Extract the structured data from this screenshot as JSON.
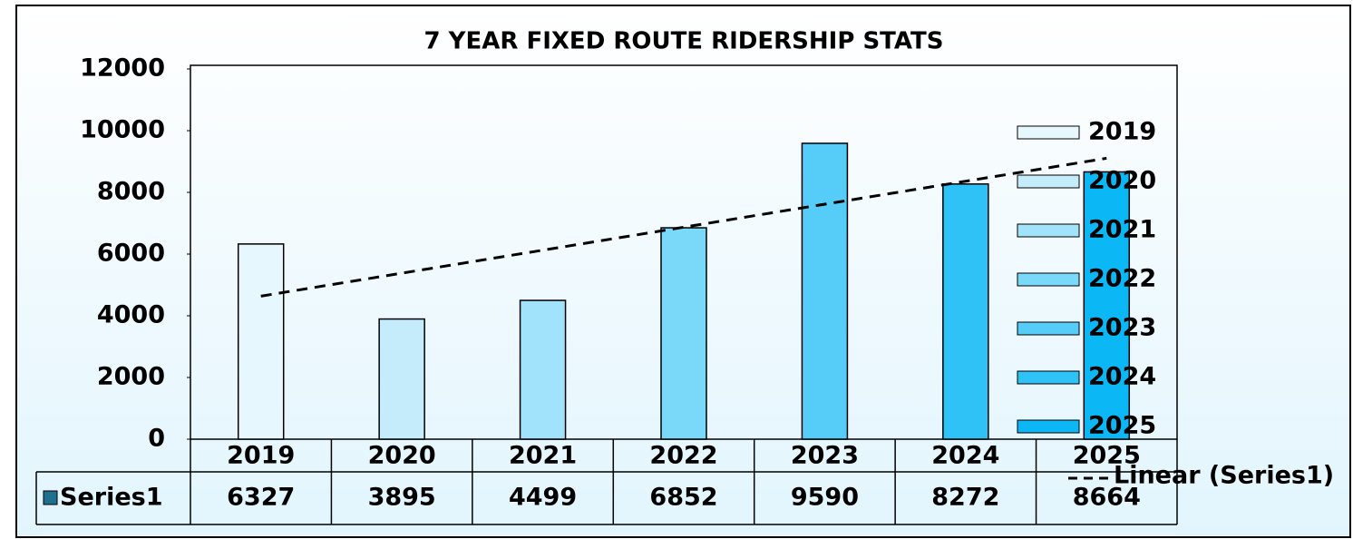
{
  "chart_data": {
    "type": "bar",
    "title": "7 YEAR FIXED ROUTE RIDERSHIP STATS",
    "categories": [
      "2019",
      "2020",
      "2021",
      "2022",
      "2023",
      "2024",
      "2025"
    ],
    "series": [
      {
        "name": "Series1",
        "color": "#1f6f8f",
        "colors": [
          "#e6f7fd",
          "#c4ecfb",
          "#a0e3fa",
          "#7ad8f9",
          "#55cdf8",
          "#2fc2f7",
          "#0bb7f5"
        ],
        "values": [
          6327,
          3895,
          4499,
          6852,
          9590,
          8272,
          8664
        ]
      }
    ],
    "trendline": {
      "type": "linear",
      "name": "Linear (Series1)"
    },
    "ylim": [
      0,
      12000
    ],
    "yticks": [
      0,
      2000,
      4000,
      6000,
      8000,
      10000,
      12000
    ],
    "legend": "right",
    "data_table": true
  }
}
